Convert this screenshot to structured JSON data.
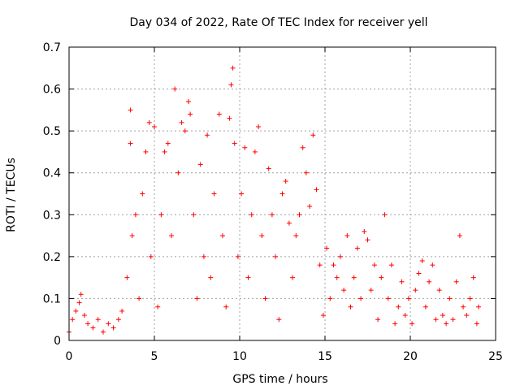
{
  "chart_data": {
    "type": "scatter",
    "title": "Day 034 of 2022, Rate Of TEC Index for receiver yell",
    "xlabel": "GPS time / hours",
    "ylabel": "ROTI / TECUs",
    "xlim": [
      0,
      25
    ],
    "ylim": [
      0,
      0.7
    ],
    "xticks": [
      "0",
      "5",
      "10",
      "15",
      "20",
      "25"
    ],
    "yticks": [
      "0",
      "0.1",
      "0.2",
      "0.3",
      "0.4",
      "0.5",
      "0.6",
      "0.7"
    ],
    "grid": true,
    "marker": "+",
    "color": "#ff0000",
    "series": [
      {
        "name": "ROTI",
        "points": [
          [
            0.0,
            0.02
          ],
          [
            0.2,
            0.05
          ],
          [
            0.4,
            0.07
          ],
          [
            0.6,
            0.09
          ],
          [
            0.7,
            0.11
          ],
          [
            0.9,
            0.06
          ],
          [
            1.1,
            0.04
          ],
          [
            1.4,
            0.03
          ],
          [
            1.7,
            0.05
          ],
          [
            2.0,
            0.02
          ],
          [
            2.3,
            0.04
          ],
          [
            2.6,
            0.03
          ],
          [
            2.9,
            0.05
          ],
          [
            3.1,
            0.07
          ],
          [
            3.4,
            0.15
          ],
          [
            3.6,
            0.55
          ],
          [
            3.6,
            0.47
          ],
          [
            3.7,
            0.25
          ],
          [
            3.9,
            0.3
          ],
          [
            4.1,
            0.1
          ],
          [
            4.3,
            0.35
          ],
          [
            4.5,
            0.45
          ],
          [
            4.7,
            0.52
          ],
          [
            4.8,
            0.2
          ],
          [
            5.0,
            0.51
          ],
          [
            5.2,
            0.08
          ],
          [
            5.4,
            0.3
          ],
          [
            5.6,
            0.45
          ],
          [
            5.8,
            0.47
          ],
          [
            6.0,
            0.25
          ],
          [
            6.2,
            0.6
          ],
          [
            6.4,
            0.4
          ],
          [
            6.6,
            0.52
          ],
          [
            6.8,
            0.5
          ],
          [
            7.0,
            0.57
          ],
          [
            7.1,
            0.54
          ],
          [
            7.3,
            0.3
          ],
          [
            7.5,
            0.1
          ],
          [
            7.7,
            0.42
          ],
          [
            7.9,
            0.2
          ],
          [
            8.1,
            0.49
          ],
          [
            8.3,
            0.15
          ],
          [
            8.5,
            0.35
          ],
          [
            8.8,
            0.54
          ],
          [
            9.0,
            0.25
          ],
          [
            9.2,
            0.08
          ],
          [
            9.4,
            0.53
          ],
          [
            9.5,
            0.61
          ],
          [
            9.6,
            0.65
          ],
          [
            9.7,
            0.47
          ],
          [
            9.9,
            0.2
          ],
          [
            10.1,
            0.35
          ],
          [
            10.3,
            0.46
          ],
          [
            10.5,
            0.15
          ],
          [
            10.7,
            0.3
          ],
          [
            10.9,
            0.45
          ],
          [
            11.1,
            0.51
          ],
          [
            11.3,
            0.25
          ],
          [
            11.5,
            0.1
          ],
          [
            11.7,
            0.41
          ],
          [
            11.9,
            0.3
          ],
          [
            12.1,
            0.2
          ],
          [
            12.3,
            0.05
          ],
          [
            12.5,
            0.35
          ],
          [
            12.7,
            0.38
          ],
          [
            12.9,
            0.28
          ],
          [
            13.1,
            0.15
          ],
          [
            13.3,
            0.25
          ],
          [
            13.5,
            0.3
          ],
          [
            13.7,
            0.46
          ],
          [
            13.9,
            0.4
          ],
          [
            14.1,
            0.32
          ],
          [
            14.3,
            0.49
          ],
          [
            14.5,
            0.36
          ],
          [
            14.7,
            0.18
          ],
          [
            14.9,
            0.06
          ],
          [
            15.1,
            0.22
          ],
          [
            15.3,
            0.1
          ],
          [
            15.5,
            0.18
          ],
          [
            15.7,
            0.15
          ],
          [
            15.9,
            0.2
          ],
          [
            16.1,
            0.12
          ],
          [
            16.3,
            0.25
          ],
          [
            16.5,
            0.08
          ],
          [
            16.7,
            0.15
          ],
          [
            16.9,
            0.22
          ],
          [
            17.1,
            0.1
          ],
          [
            17.3,
            0.26
          ],
          [
            17.5,
            0.24
          ],
          [
            17.7,
            0.12
          ],
          [
            17.9,
            0.18
          ],
          [
            18.1,
            0.05
          ],
          [
            18.3,
            0.15
          ],
          [
            18.5,
            0.3
          ],
          [
            18.7,
            0.1
          ],
          [
            18.9,
            0.18
          ],
          [
            19.1,
            0.04
          ],
          [
            19.3,
            0.08
          ],
          [
            19.5,
            0.14
          ],
          [
            19.7,
            0.06
          ],
          [
            19.9,
            0.1
          ],
          [
            20.1,
            0.04
          ],
          [
            20.3,
            0.12
          ],
          [
            20.5,
            0.16
          ],
          [
            20.7,
            0.19
          ],
          [
            20.9,
            0.08
          ],
          [
            21.1,
            0.14
          ],
          [
            21.3,
            0.18
          ],
          [
            21.5,
            0.05
          ],
          [
            21.7,
            0.12
          ],
          [
            21.9,
            0.06
          ],
          [
            22.1,
            0.04
          ],
          [
            22.3,
            0.1
          ],
          [
            22.5,
            0.05
          ],
          [
            22.7,
            0.14
          ],
          [
            22.9,
            0.25
          ],
          [
            23.1,
            0.08
          ],
          [
            23.3,
            0.06
          ],
          [
            23.5,
            0.1
          ],
          [
            23.7,
            0.15
          ],
          [
            23.9,
            0.04
          ],
          [
            24.0,
            0.08
          ]
        ]
      }
    ]
  }
}
